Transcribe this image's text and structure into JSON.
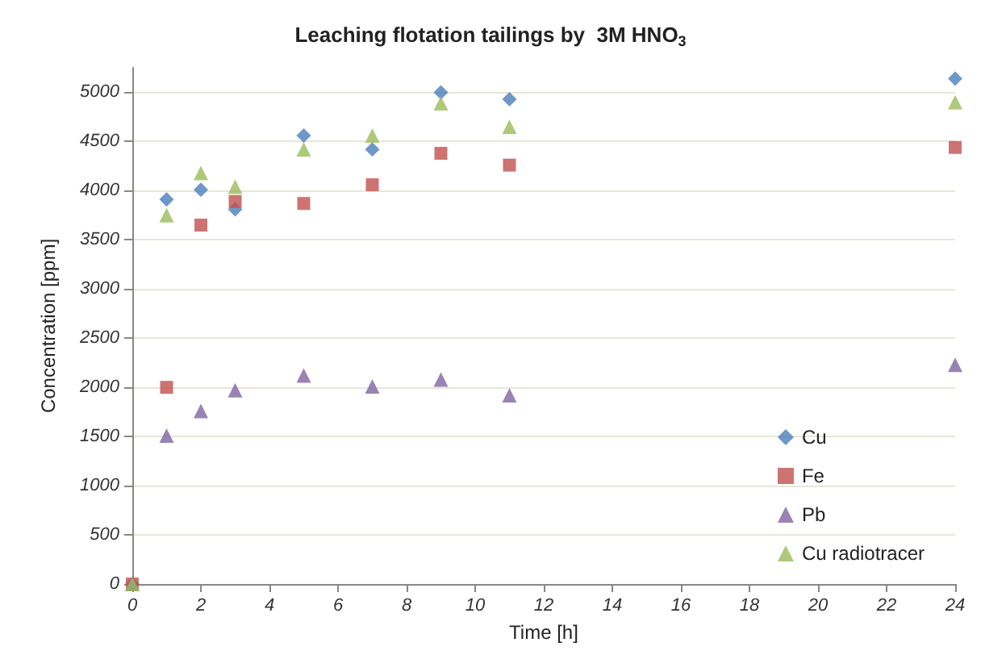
{
  "chart_data": {
    "type": "scatter",
    "title": "Leaching flotation tailings by  3M HNO$_{3}$",
    "xlabel": "Time [h]",
    "ylabel": "Concentration [ppm]",
    "x": [
      0,
      1,
      2,
      3,
      5,
      7,
      9,
      11,
      24
    ],
    "series": [
      {
        "name": "Cu",
        "color": "#4a7ebb",
        "marker": "diamond",
        "values": [
          0,
          3910,
          4010,
          3810,
          4560,
          4420,
          5000,
          4930,
          5140
        ]
      },
      {
        "name": "Fe",
        "color": "#c0504d",
        "marker": "square",
        "values": [
          0,
          2000,
          3650,
          3890,
          3870,
          4060,
          4380,
          4260,
          4440
        ]
      },
      {
        "name": "Pb",
        "color": "#8064a2",
        "marker": "triangle",
        "values": [
          0,
          1510,
          1760,
          1970,
          2120,
          2010,
          2080,
          1920,
          2230
        ]
      },
      {
        "name": "Cu radiotracer",
        "color": "#9bbb59",
        "marker": "triangle",
        "values": [
          0,
          3750,
          4180,
          4040,
          4420,
          4560,
          4890,
          4650,
          4900
        ]
      }
    ],
    "xlim": [
      0,
      24
    ],
    "xticks": [
      0,
      2,
      4,
      6,
      8,
      10,
      12,
      14,
      16,
      18,
      20,
      22,
      24
    ],
    "ylim": [
      0,
      5250
    ],
    "yticks": [
      0,
      500,
      1000,
      1500,
      2000,
      2500,
      3000,
      3500,
      4000,
      4500,
      5000
    ],
    "grid": "y",
    "legend": "bottom right"
  }
}
